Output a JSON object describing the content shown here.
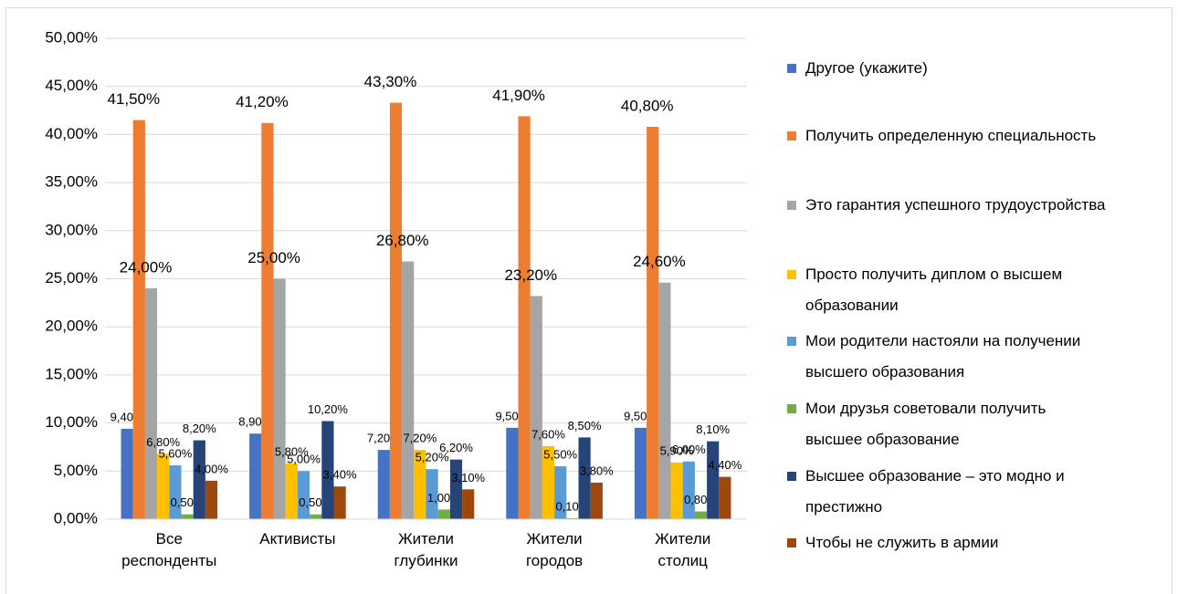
{
  "chart_data": {
    "type": "bar",
    "categories": [
      "Все респонденты",
      "Активисты",
      "Жители глубинки",
      "Жители городов",
      "Жители столиц"
    ],
    "series": [
      {
        "name": "Другое (укажите)",
        "color": "#4472c4",
        "values": [
          9.4,
          8.9,
          7.2,
          9.5,
          9.5
        ],
        "value_labels": [
          "9,40%",
          "8,90%",
          "7,20%",
          "9,50%",
          "9,50%"
        ]
      },
      {
        "name": "Получить определенную специальность",
        "color": "#ed7d31",
        "values": [
          41.5,
          41.2,
          43.3,
          41.9,
          40.8
        ],
        "value_labels": [
          "41,50%",
          "41,20%",
          "43,30%",
          "41,90%",
          "40,80%"
        ]
      },
      {
        "name": "Это гарантия успешного трудоустройства",
        "color": "#a5a5a5",
        "values": [
          24.0,
          25.0,
          26.8,
          23.2,
          24.6
        ],
        "value_labels": [
          "24,00%",
          "25,00%",
          "26,80%",
          "23,20%",
          "24,60%"
        ]
      },
      {
        "name": "Просто получить диплом о высшем образовании",
        "color": "#ffc000",
        "values": [
          6.8,
          5.8,
          7.2,
          7.6,
          5.9
        ],
        "value_labels": [
          "6,80%",
          "5,80%",
          "7,20%",
          "7,60%",
          "5,90%"
        ]
      },
      {
        "name": "Мои родители настояли на получении высшего образования",
        "color": "#5b9bd5",
        "values": [
          5.6,
          5.0,
          5.2,
          5.5,
          6.0
        ],
        "value_labels": [
          "5,60%",
          "5,00%",
          "5,20%",
          "5,50%",
          "6,00%"
        ]
      },
      {
        "name": "Мои друзья советовали получить высшее образование",
        "color": "#70ad47",
        "values": [
          0.5,
          0.5,
          1.0,
          0.1,
          0.8
        ],
        "value_labels": [
          "0,50%",
          "0,50%",
          "1,00%",
          "0,10%",
          "0,80%"
        ]
      },
      {
        "name": "Высшее образование – это модно и престижно",
        "color": "#264478",
        "values": [
          8.2,
          10.2,
          6.2,
          8.5,
          8.1
        ],
        "value_labels": [
          "8,20%",
          "10,20%",
          "6,20%",
          "8,50%",
          "8,10%"
        ]
      },
      {
        "name": "Чтобы не служить в армии",
        "color": "#9e480e",
        "values": [
          4.0,
          3.4,
          3.1,
          3.8,
          4.4
        ],
        "value_labels": [
          "4,00%",
          "3,40%",
          "3,10%",
          "3,80%",
          "4,40%"
        ]
      }
    ],
    "ylim": [
      0,
      50
    ],
    "yticks": [
      {
        "value": 0,
        "label": "0,00%"
      },
      {
        "value": 5,
        "label": "5,00%"
      },
      {
        "value": 10,
        "label": "10,00%"
      },
      {
        "value": 15,
        "label": "15,00%"
      },
      {
        "value": 20,
        "label": "20,00%"
      },
      {
        "value": 25,
        "label": "25,00%"
      },
      {
        "value": 30,
        "label": "30,00%"
      },
      {
        "value": 35,
        "label": "35,00%"
      },
      {
        "value": 40,
        "label": "40,00%"
      },
      {
        "value": 45,
        "label": "45,00%"
      },
      {
        "value": 50,
        "label": "50,00%"
      }
    ],
    "grid": true,
    "legend": "right"
  }
}
